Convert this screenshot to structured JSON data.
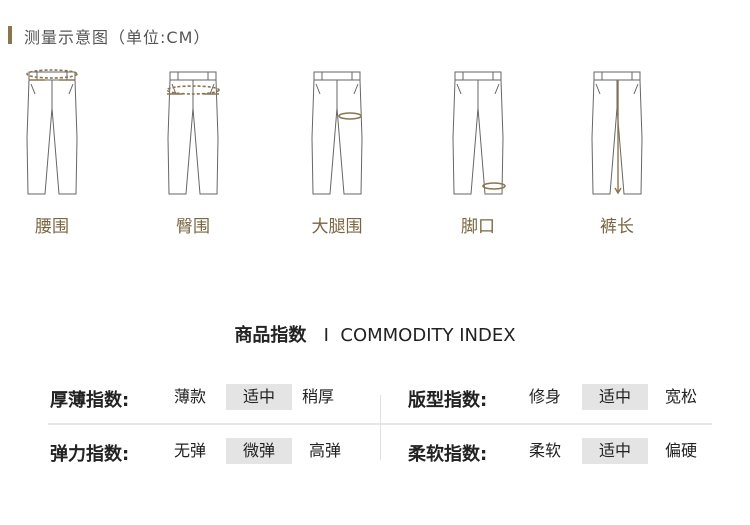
{
  "header": {
    "title": "测量示意图（单位:CM）",
    "accent": "#8a7550"
  },
  "measurements": [
    {
      "label": "腰围",
      "icon": "pants-waist-icon"
    },
    {
      "label": "臀围",
      "icon": "pants-hip-icon"
    },
    {
      "label": "大腿围",
      "icon": "pants-thigh-icon"
    },
    {
      "label": "脚口",
      "icon": "pants-hem-icon"
    },
    {
      "label": "裤长",
      "icon": "pants-length-icon"
    }
  ],
  "index": {
    "title_cn": "商品指数",
    "separator": "I",
    "title_en": "COMMODITY INDEX",
    "rows": [
      {
        "label": "厚薄指数:",
        "options": [
          "薄款",
          "适中",
          "稍厚"
        ],
        "selected": "适中"
      },
      {
        "label": "版型指数:",
        "options": [
          "修身",
          "适中",
          "宽松"
        ],
        "selected": "适中"
      },
      {
        "label": "弹力指数:",
        "options": [
          "无弹",
          "微弹",
          "高弹"
        ],
        "selected": "微弹"
      },
      {
        "label": "柔软指数:",
        "options": [
          "柔软",
          "适中",
          "偏硬"
        ],
        "selected": "适中"
      }
    ]
  }
}
